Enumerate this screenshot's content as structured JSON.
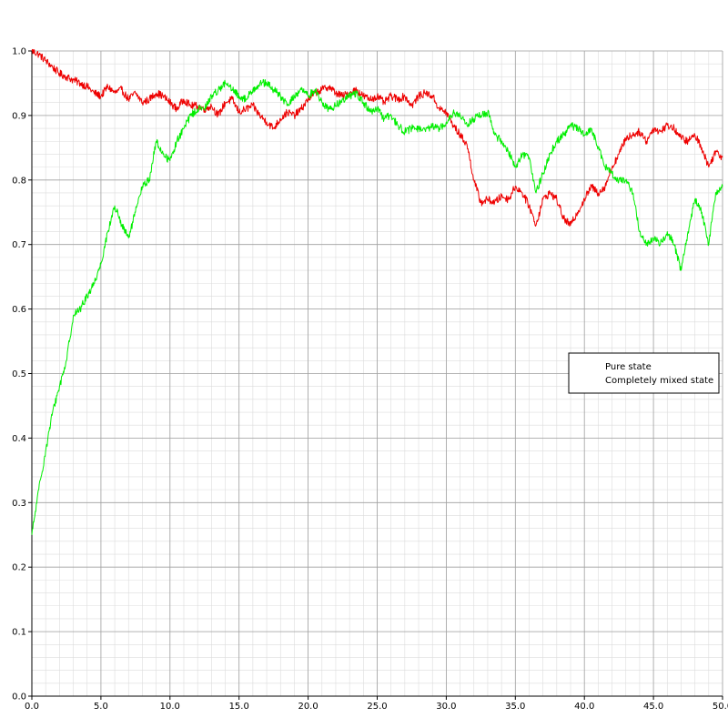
{
  "chart_data": {
    "type": "line",
    "title": "",
    "xlabel": "",
    "ylabel": "",
    "xlim": [
      0,
      50
    ],
    "ylim": [
      0,
      1
    ],
    "x_major_step": 5,
    "y_major_step": 0.1,
    "x_minor_step": 1,
    "y_minor_step": 0.02,
    "grid": true,
    "legend_position": "right",
    "x_tick_labels": [
      "0.0",
      "5.0",
      "10.0",
      "15.0",
      "20.0",
      "25.0",
      "30.0",
      "35.0",
      "40.0",
      "45.0",
      "50.0"
    ],
    "y_tick_labels": [
      "0.0",
      "0.1",
      "0.2",
      "0.3",
      "0.4",
      "0.5",
      "0.6",
      "0.7",
      "0.8",
      "0.9",
      "1.0"
    ],
    "series": [
      {
        "name": "Pure state",
        "color": "#ee0000",
        "x": [
          0,
          0.5,
          1,
          1.5,
          2,
          2.5,
          3,
          3.5,
          4,
          4.5,
          5,
          5.5,
          6,
          6.5,
          7,
          7.5,
          8,
          8.5,
          9,
          9.5,
          10,
          10.5,
          11,
          11.5,
          12,
          12.5,
          13,
          13.5,
          14,
          14.5,
          15,
          15.5,
          16,
          16.5,
          17,
          17.5,
          18,
          18.5,
          19,
          19.5,
          20,
          20.5,
          21,
          21.5,
          22,
          22.5,
          23,
          23.5,
          24,
          24.5,
          25,
          25.5,
          26,
          26.5,
          27,
          27.5,
          28,
          28.5,
          29,
          29.5,
          30,
          30.5,
          31,
          31.5,
          32,
          32.5,
          33,
          33.5,
          34,
          34.5,
          35,
          35.5,
          36,
          36.5,
          37,
          37.5,
          38,
          38.5,
          39,
          39.5,
          40,
          40.5,
          41,
          41.5,
          42,
          42.5,
          43,
          43.5,
          44,
          44.5,
          45,
          45.5,
          46,
          46.5,
          47,
          47.5,
          48,
          48.5,
          49,
          49.5,
          50
        ],
        "values": [
          1.0,
          0.995,
          0.985,
          0.975,
          0.965,
          0.96,
          0.955,
          0.95,
          0.945,
          0.935,
          0.93,
          0.945,
          0.935,
          0.94,
          0.925,
          0.935,
          0.92,
          0.925,
          0.935,
          0.93,
          0.92,
          0.91,
          0.925,
          0.915,
          0.915,
          0.91,
          0.915,
          0.9,
          0.92,
          0.925,
          0.905,
          0.91,
          0.915,
          0.9,
          0.89,
          0.88,
          0.895,
          0.905,
          0.9,
          0.91,
          0.925,
          0.935,
          0.94,
          0.945,
          0.935,
          0.93,
          0.935,
          0.94,
          0.93,
          0.925,
          0.93,
          0.92,
          0.93,
          0.925,
          0.93,
          0.915,
          0.93,
          0.935,
          0.93,
          0.91,
          0.905,
          0.885,
          0.87,
          0.855,
          0.8,
          0.765,
          0.77,
          0.765,
          0.775,
          0.77,
          0.79,
          0.78,
          0.76,
          0.73,
          0.77,
          0.78,
          0.77,
          0.74,
          0.73,
          0.75,
          0.77,
          0.79,
          0.78,
          0.79,
          0.82,
          0.84,
          0.865,
          0.87,
          0.875,
          0.86,
          0.88,
          0.875,
          0.885,
          0.88,
          0.865,
          0.86,
          0.87,
          0.85,
          0.82,
          0.845,
          0.835
        ]
      },
      {
        "name": "Completely mixed state",
        "color": "#00ee00",
        "x": [
          0,
          0.5,
          1,
          1.5,
          2,
          2.5,
          3,
          3.5,
          4,
          4.5,
          5,
          5.5,
          6,
          6.5,
          7,
          7.5,
          8,
          8.5,
          9,
          9.5,
          10,
          10.5,
          11,
          11.5,
          12,
          12.5,
          13,
          13.5,
          14,
          14.5,
          15,
          15.5,
          16,
          16.5,
          17,
          17.5,
          18,
          18.5,
          19,
          19.5,
          20,
          20.5,
          21,
          21.5,
          22,
          22.5,
          23,
          23.5,
          24,
          24.5,
          25,
          25.5,
          26,
          26.5,
          27,
          27.5,
          28,
          28.5,
          29,
          29.5,
          30,
          30.5,
          31,
          31.5,
          32,
          32.5,
          33,
          33.5,
          34,
          34.5,
          35,
          35.5,
          36,
          36.5,
          37,
          37.5,
          38,
          38.5,
          39,
          39.5,
          40,
          40.5,
          41,
          41.5,
          42,
          42.5,
          43,
          43.5,
          44,
          44.5,
          45,
          45.5,
          46,
          46.5,
          47,
          47.5,
          48,
          48.5,
          49,
          49.5,
          50
        ],
        "values": [
          0.25,
          0.32,
          0.38,
          0.44,
          0.48,
          0.52,
          0.59,
          0.6,
          0.62,
          0.64,
          0.67,
          0.72,
          0.76,
          0.73,
          0.71,
          0.75,
          0.79,
          0.8,
          0.86,
          0.84,
          0.83,
          0.86,
          0.88,
          0.9,
          0.91,
          0.91,
          0.93,
          0.94,
          0.95,
          0.94,
          0.93,
          0.925,
          0.94,
          0.95,
          0.95,
          0.94,
          0.93,
          0.915,
          0.93,
          0.94,
          0.93,
          0.94,
          0.92,
          0.91,
          0.915,
          0.925,
          0.93,
          0.935,
          0.92,
          0.905,
          0.91,
          0.895,
          0.9,
          0.885,
          0.875,
          0.88,
          0.88,
          0.875,
          0.885,
          0.88,
          0.89,
          0.905,
          0.9,
          0.885,
          0.895,
          0.9,
          0.905,
          0.87,
          0.86,
          0.845,
          0.82,
          0.84,
          0.835,
          0.78,
          0.81,
          0.84,
          0.86,
          0.87,
          0.885,
          0.88,
          0.87,
          0.88,
          0.85,
          0.82,
          0.81,
          0.8,
          0.8,
          0.78,
          0.72,
          0.7,
          0.71,
          0.7,
          0.72,
          0.7,
          0.66,
          0.72,
          0.77,
          0.75,
          0.7,
          0.78,
          0.79
        ]
      }
    ]
  }
}
